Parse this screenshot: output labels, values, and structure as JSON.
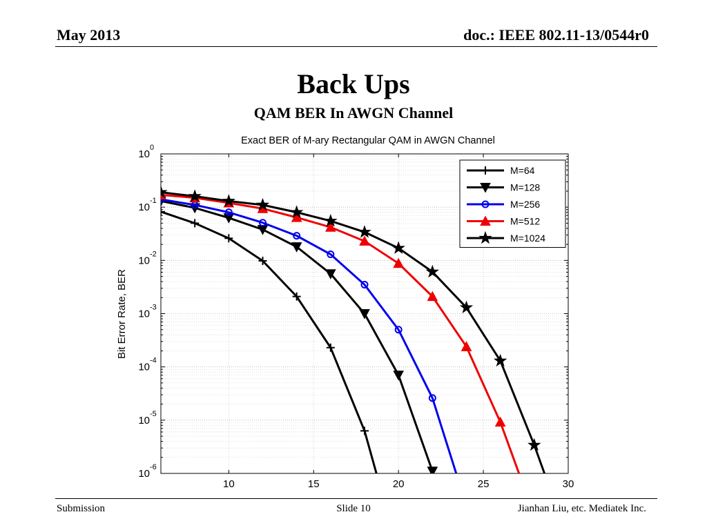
{
  "header": {
    "date": "May 2013",
    "doc_id": "doc.: IEEE 802.11-13/0544r0"
  },
  "slide": {
    "title": "Back Ups",
    "subtitle": "QAM BER In AWGN Channel"
  },
  "footer": {
    "left": "Submission",
    "center": "Slide 10",
    "right": "Jianhan Liu, etc. Mediatek Inc."
  },
  "chart_data": {
    "type": "line",
    "title": "Exact BER of M-ary Rectangular QAM in AWGN Channel",
    "xlabel": "",
    "ylabel": "Bit Error Rate, BER",
    "xlim": [
      6,
      30
    ],
    "ylim": [
      1e-06,
      1
    ],
    "yscale": "log",
    "x_ticks": [
      "10",
      "15",
      "20",
      "25",
      "30"
    ],
    "x_tick_values": [
      10,
      15,
      20,
      25,
      30
    ],
    "y_ticks": [
      {
        "base": "10",
        "exp": "0",
        "value": 1
      },
      {
        "base": "10",
        "exp": "-1",
        "value": 0.1
      },
      {
        "base": "10",
        "exp": "-2",
        "value": 0.01
      },
      {
        "base": "10",
        "exp": "-3",
        "value": 0.001
      },
      {
        "base": "10",
        "exp": "-4",
        "value": 0.0001
      },
      {
        "base": "10",
        "exp": "-5",
        "value": 1e-05
      },
      {
        "base": "10",
        "exp": "-6",
        "value": 1e-06
      }
    ],
    "grid": true,
    "legend_position": "top-right",
    "series": [
      {
        "name": "M=64",
        "color": "#000000",
        "marker": "plus",
        "x": [
          6,
          8,
          10,
          12,
          14,
          16,
          18,
          18.7
        ],
        "y": [
          0.082,
          0.05,
          0.026,
          0.0098,
          0.0021,
          0.00023,
          6.3e-06,
          1e-06
        ]
      },
      {
        "name": "M=128",
        "color": "#000000",
        "marker": "triangle-down",
        "x": [
          6,
          8,
          10,
          12,
          14,
          16,
          18,
          20,
          22
        ],
        "y": [
          0.13,
          0.097,
          0.063,
          0.038,
          0.018,
          0.0056,
          0.001,
          7e-05,
          1.1e-06
        ]
      },
      {
        "name": "M=256",
        "color": "#0000ee",
        "marker": "circle",
        "x": [
          6,
          8,
          10,
          12,
          14,
          16,
          18,
          20,
          22,
          23.4
        ],
        "y": [
          0.14,
          0.11,
          0.08,
          0.051,
          0.029,
          0.013,
          0.0035,
          0.0005,
          2.6e-05,
          1e-06
        ]
      },
      {
        "name": "M=512",
        "color": "#ee0000",
        "marker": "triangle-up",
        "x": [
          6,
          8,
          10,
          12,
          14,
          16,
          18,
          20,
          22,
          24,
          26,
          27.1
        ],
        "y": [
          0.17,
          0.15,
          0.12,
          0.094,
          0.064,
          0.042,
          0.023,
          0.0088,
          0.0021,
          0.00024,
          9.2e-06,
          1e-06
        ]
      },
      {
        "name": "M=1024",
        "color": "#000000",
        "marker": "star",
        "x": [
          6,
          8,
          10,
          12,
          14,
          16,
          18,
          20,
          22,
          24,
          26,
          28,
          28.6
        ],
        "y": [
          0.19,
          0.16,
          0.13,
          0.11,
          0.08,
          0.055,
          0.034,
          0.017,
          0.0061,
          0.0013,
          0.00013,
          3.4e-06,
          1e-06
        ]
      }
    ]
  }
}
